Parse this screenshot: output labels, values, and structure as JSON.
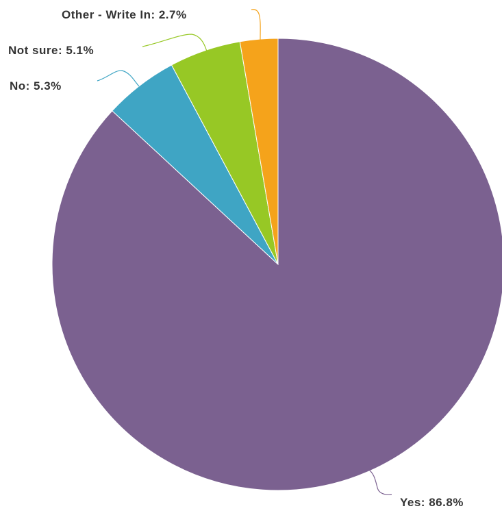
{
  "chart_data": {
    "type": "pie",
    "start": "top",
    "direction": "clockwise",
    "slices": [
      {
        "label": "Yes",
        "value": 86.8,
        "text": "Yes: 86.8%",
        "color": "#7b6190"
      },
      {
        "label": "No",
        "value": 5.3,
        "text": "No: 5.3%",
        "color": "#3fa5c4"
      },
      {
        "label": "Not sure",
        "value": 5.1,
        "text": "Not sure: 5.1%",
        "color": "#97c825"
      },
      {
        "label": "Other - Write In",
        "value": 2.7,
        "text": "Other - Write In: 2.7%",
        "color": "#f5a31b"
      }
    ]
  }
}
